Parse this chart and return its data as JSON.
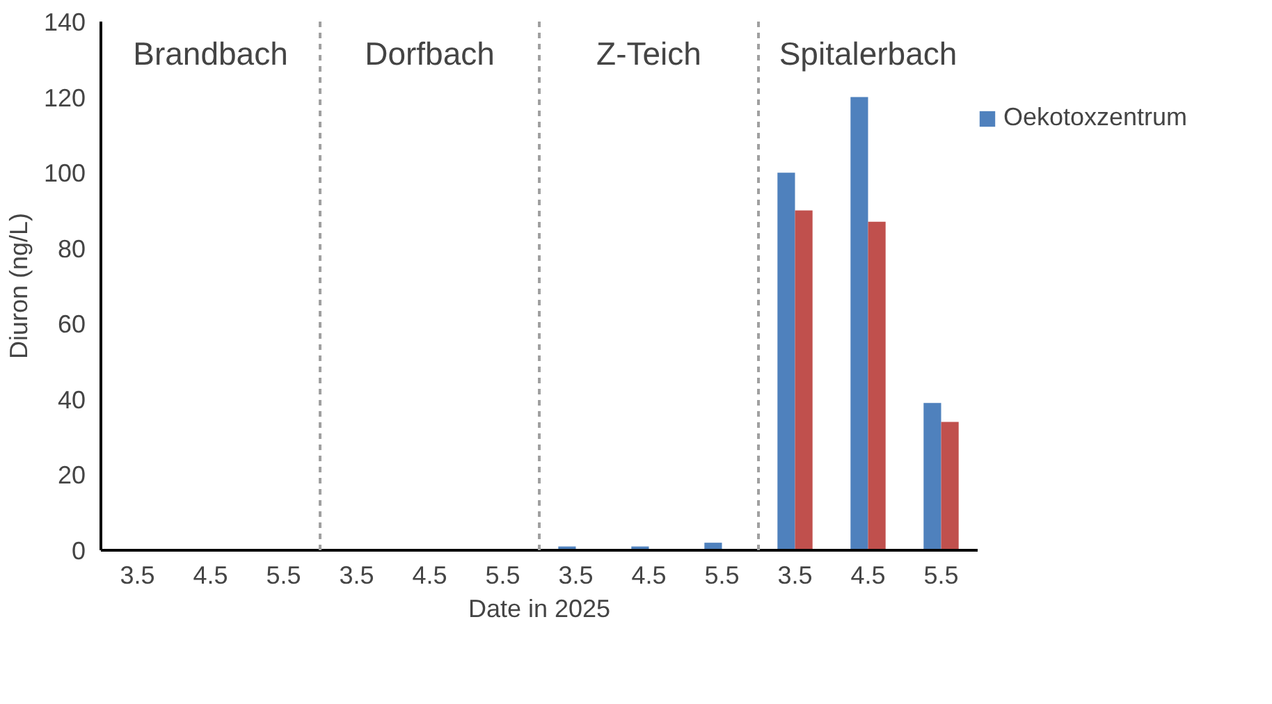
{
  "chart_data": {
    "type": "bar",
    "xlabel": "Date in 2025",
    "ylabel": "Diuron (ng/L)",
    "categories": [
      "3.5",
      "4.5",
      "5.5",
      "3.5",
      "4.5",
      "5.5",
      "3.5",
      "4.5",
      "5.5",
      "3.5",
      "4.5",
      "5.5"
    ],
    "series": [
      {
        "name": "Oekotoxzentrum",
        "color": "#4f81bd",
        "values": [
          0,
          0,
          0,
          0,
          0,
          0,
          1,
          1,
          2,
          100,
          120,
          39
        ]
      },
      {
        "color": "#c0504d",
        "values": [
          0,
          0,
          0,
          0,
          0,
          0,
          0,
          0,
          0,
          90,
          87,
          34
        ]
      }
    ],
    "annotations": [
      "Brandbach",
      "Dorfbach",
      "Z-Teich",
      "Spitalerbach"
    ],
    "ylim": [
      0,
      140
    ],
    "yticks": [
      0,
      20,
      40,
      60,
      80,
      100,
      120,
      140
    ],
    "grid": false,
    "legend": "right"
  }
}
